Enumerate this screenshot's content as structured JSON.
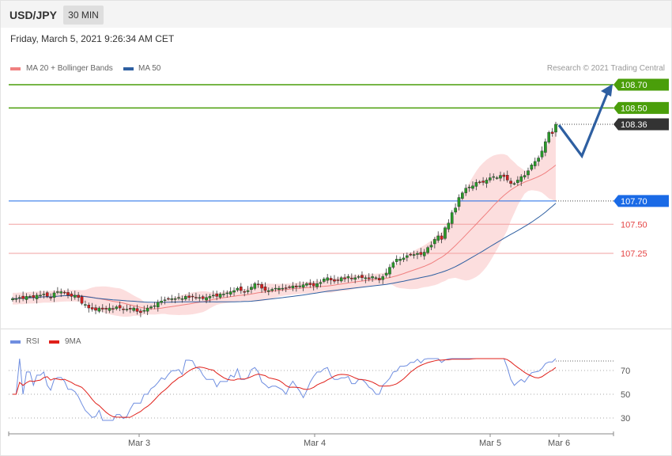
{
  "header": {
    "symbol": "USD/JPY",
    "timeframe": "30 MIN"
  },
  "datetime": "Friday, March 5, 2021 9:26:34 AM CET",
  "legend": {
    "ma20": "MA 20 + Bollinger Bands",
    "ma50": "MA 50",
    "credit": "Research © 2021 Trading Central"
  },
  "rsi_legend": {
    "rsi": "RSI",
    "ma9": "9MA"
  },
  "colors": {
    "green": "#4a9e0a",
    "blue": "#1a6ae6",
    "red": "#e54545",
    "dark": "#333333",
    "ma20": "#f08080",
    "ma50": "#2e5fa1",
    "band": "#fbd8d8",
    "arrow": "#2e5fa1",
    "rsi": "#6f8ee0",
    "rsi_ma": "#e0201a"
  },
  "chart_data": [
    {
      "type": "candlestick",
      "title": "USD/JPY",
      "x_labels": [
        "Mar 3",
        "Mar 4",
        "Mar 5",
        "Mar 6"
      ],
      "price_levels": [
        {
          "value": 108.7,
          "label": "108.70",
          "kind": "resistance"
        },
        {
          "value": 108.5,
          "label": "108.50",
          "kind": "resistance"
        },
        {
          "value": 108.36,
          "label": "108.36",
          "kind": "last"
        },
        {
          "value": 107.7,
          "label": "107.70",
          "kind": "pivot"
        },
        {
          "value": 107.5,
          "label": "107.50",
          "kind": "support"
        },
        {
          "value": 107.25,
          "label": "107.25",
          "kind": "support"
        }
      ],
      "close_series": [
        106.86,
        106.86,
        106.87,
        106.86,
        106.88,
        106.88,
        106.87,
        106.89,
        106.89,
        106.9,
        106.88,
        106.87,
        106.91,
        106.92,
        106.92,
        106.91,
        106.89,
        106.88,
        106.89,
        106.87,
        106.82,
        106.81,
        106.78,
        106.77,
        106.76,
        106.78,
        106.77,
        106.77,
        106.78,
        106.77,
        106.79,
        106.78,
        106.77,
        106.77,
        106.77,
        106.78,
        106.75,
        106.74,
        106.76,
        106.78,
        106.79,
        106.8,
        106.83,
        106.84,
        106.85,
        106.86,
        106.86,
        106.86,
        106.87,
        106.86,
        106.88,
        106.87,
        106.88,
        106.87,
        106.87,
        106.86,
        106.87,
        106.88,
        106.89,
        106.88,
        106.9,
        106.9,
        106.91,
        106.92,
        106.93,
        106.95,
        106.93,
        106.92,
        106.93,
        106.96,
        106.99,
        106.98,
        106.95,
        106.93,
        106.93,
        106.94,
        106.95,
        106.95,
        106.95,
        106.95,
        106.96,
        106.97,
        106.96,
        106.97,
        106.98,
        106.99,
        106.98,
        106.97,
        106.99,
        107.0,
        107.03,
        107.04,
        107.02,
        107.01,
        107.02,
        107.04,
        107.03,
        107.05,
        107.03,
        107.04,
        107.05,
        107.04,
        107.04,
        107.03,
        107.05,
        107.04,
        107.02,
        107.05,
        107.08,
        107.13,
        107.17,
        107.2,
        107.2,
        107.21,
        107.23,
        107.24,
        107.24,
        107.25,
        107.24,
        107.26,
        107.3,
        107.32,
        107.37,
        107.4,
        107.37,
        107.47,
        107.51,
        107.6,
        107.64,
        107.73,
        107.77,
        107.81,
        107.82,
        107.83,
        107.86,
        107.86,
        107.86,
        107.88,
        107.9,
        107.91,
        107.9,
        107.92,
        107.91,
        107.88,
        107.85,
        107.85,
        107.88,
        107.91,
        107.92,
        107.96,
        108.01,
        108.04,
        108.07,
        108.13,
        108.21,
        108.29,
        108.28,
        108.36
      ],
      "rsi": {
        "levels": [
          70,
          50,
          30
        ],
        "ymin": 20,
        "ymax": 90
      }
    }
  ]
}
